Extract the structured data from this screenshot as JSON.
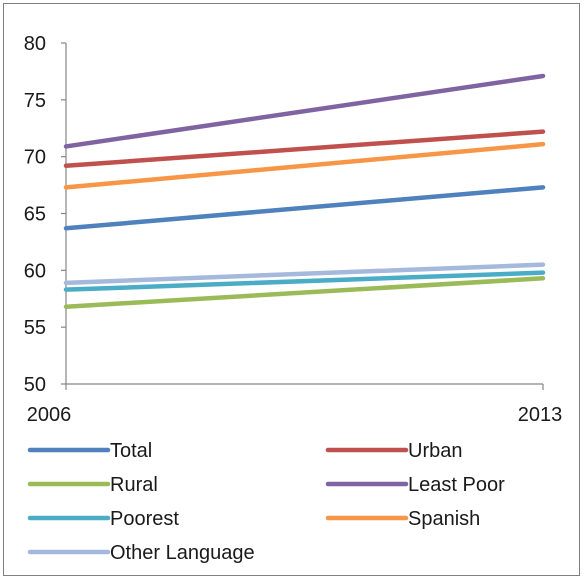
{
  "chart_data": {
    "type": "line",
    "title": "",
    "xlabel": "",
    "ylabel": "",
    "x": [
      "2006",
      "2013"
    ],
    "ylim": [
      50,
      80
    ],
    "yticks": [
      50,
      55,
      60,
      65,
      70,
      75,
      80
    ],
    "grid": false,
    "legend_position": "bottom",
    "series": [
      {
        "name": "Total",
        "values": [
          63.7,
          67.3
        ],
        "color": "#4f81bd"
      },
      {
        "name": "Urban",
        "values": [
          69.2,
          72.2
        ],
        "color": "#c0504d"
      },
      {
        "name": "Rural",
        "values": [
          56.8,
          59.3
        ],
        "color": "#9bbb59"
      },
      {
        "name": "Least Poor",
        "values": [
          70.9,
          77.1
        ],
        "color": "#8064a2"
      },
      {
        "name": "Poorest",
        "values": [
          58.3,
          59.8
        ],
        "color": "#4bacc6"
      },
      {
        "name": "Spanish",
        "values": [
          67.3,
          71.1
        ],
        "color": "#f79646"
      },
      {
        "name": "Other Language",
        "values": [
          58.9,
          60.5
        ],
        "color": "#a5b9dc"
      }
    ]
  }
}
